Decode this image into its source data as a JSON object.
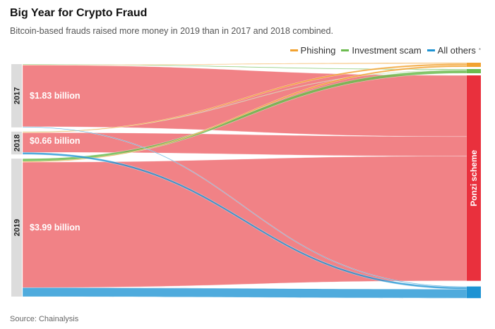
{
  "title": "Big Year for Crypto Fraud",
  "subtitle": "Bitcoin-based frauds raised more money in 2019 than in 2017 and 2018 combined.",
  "legend": [
    {
      "label": "Phishing",
      "color": "#f2a230"
    },
    {
      "label": "Investment scam",
      "color": "#6cbb4f"
    },
    {
      "label": "All others",
      "color": "#1e93d3",
      "note": "*"
    }
  ],
  "source": "Source: Chainalysis",
  "colors": {
    "ponzi": "#e9303d",
    "ponzi_flow": "#f07b80",
    "phishing": "#f2a230",
    "investment": "#6cbb4f",
    "others": "#1e93d3",
    "year_bar": "#dcdcdc"
  },
  "chart_data": {
    "type": "sankey",
    "title": "Big Year for Crypto Fraud",
    "sources": [
      {
        "year": "2017",
        "value_label": "$1.83 billion"
      },
      {
        "year": "2018",
        "value_label": "$0.66 billion"
      },
      {
        "year": "2019",
        "value_label": "$3.99 billion"
      }
    ],
    "targets": [
      "Phishing",
      "Investment scam",
      "Ponzi scheme",
      "All others"
    ],
    "target_label": "Ponzi scheme",
    "flows": [
      {
        "source": "2017",
        "target": "Phishing",
        "value": 0.01
      },
      {
        "source": "2017",
        "target": "Investment scam",
        "value": 0.02
      },
      {
        "source": "2017",
        "target": "Ponzi scheme",
        "value": 1.78
      },
      {
        "source": "2017",
        "target": "All others",
        "value": 0.02
      },
      {
        "source": "2018",
        "target": "Phishing",
        "value": 0.02
      },
      {
        "source": "2018",
        "target": "Investment scam",
        "value": 0.01
      },
      {
        "source": "2018",
        "target": "Ponzi scheme",
        "value": 0.57
      },
      {
        "source": "2018",
        "target": "All others",
        "value": 0.06
      },
      {
        "source": "2019",
        "target": "Phishing",
        "value": 0.02
      },
      {
        "source": "2019",
        "target": "Investment scam",
        "value": 0.08
      },
      {
        "source": "2019",
        "target": "Ponzi scheme",
        "value": 3.63
      },
      {
        "source": "2019",
        "target": "All others",
        "value": 0.26
      }
    ]
  }
}
